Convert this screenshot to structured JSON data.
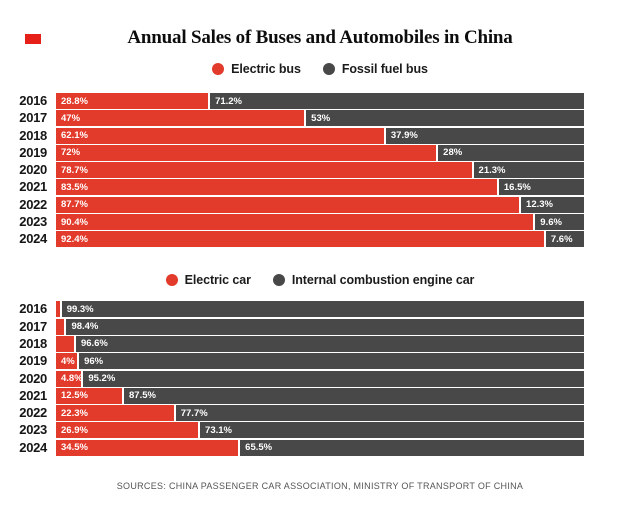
{
  "page": {
    "title": "Annual Sales of Buses and Automobiles in China",
    "source_note": "SOURCES: CHINA PASSENGER CAR ASSOCIATION, MINISTRY OF TRANSPORT OF CHINA",
    "brand_mark_color": "#e71f19",
    "accent_red": "#e23b2b",
    "accent_gray": "#484848"
  },
  "chart_data": [
    {
      "type": "bar",
      "orientation": "horizontal",
      "stacked": true,
      "unit": "%",
      "xlim": [
        0,
        100
      ],
      "grid": false,
      "legend_position": "top",
      "legend": [
        "Electric bus",
        "Fossil fuel bus"
      ],
      "categories": [
        "2016",
        "2017",
        "2018",
        "2019",
        "2020",
        "2021",
        "2022",
        "2023",
        "2024"
      ],
      "series": [
        {
          "name": "Electric bus",
          "color": "#e23b2b",
          "values": [
            28.8,
            47,
            62.1,
            72,
            78.7,
            83.5,
            87.7,
            90.4,
            92.4
          ],
          "labels": [
            "28.8%",
            "47%",
            "62.1%",
            "72%",
            "78.7%",
            "83.5%",
            "87.7%",
            "90.4%",
            "92.4%"
          ]
        },
        {
          "name": "Fossil fuel bus",
          "color": "#484848",
          "values": [
            71.2,
            53,
            37.9,
            28,
            21.3,
            16.5,
            12.3,
            9.6,
            7.6
          ],
          "labels": [
            "71.2%",
            "53%",
            "37.9%",
            "28%",
            "21.3%",
            "16.5%",
            "12.3%",
            "9.6%",
            "7.6%"
          ]
        }
      ]
    },
    {
      "type": "bar",
      "orientation": "horizontal",
      "stacked": true,
      "unit": "%",
      "xlim": [
        0,
        100
      ],
      "grid": false,
      "legend_position": "top",
      "legend": [
        "Electric car",
        "Internal combustion engine car"
      ],
      "categories": [
        "2016",
        "2017",
        "2018",
        "2019",
        "2020",
        "2021",
        "2022",
        "2023",
        "2024"
      ],
      "series": [
        {
          "name": "Electric car",
          "color": "#e23b2b",
          "values": [
            0.7,
            1.6,
            3.4,
            4,
            4.8,
            12.5,
            22.3,
            26.9,
            34.5
          ],
          "labels": [
            "",
            "",
            "",
            "4%",
            "4.8%",
            "12.5%",
            "22.3%",
            "26.9%",
            "34.5%"
          ]
        },
        {
          "name": "Internal combustion engine car",
          "color": "#484848",
          "values": [
            99.3,
            98.4,
            96.6,
            96,
            95.2,
            87.5,
            77.7,
            73.1,
            65.5
          ],
          "labels": [
            "99.3%",
            "98.4%",
            "96.6%",
            "96%",
            "95.2%",
            "87.5%",
            "77.7%",
            "73.1%",
            "65.5%"
          ]
        }
      ]
    }
  ]
}
